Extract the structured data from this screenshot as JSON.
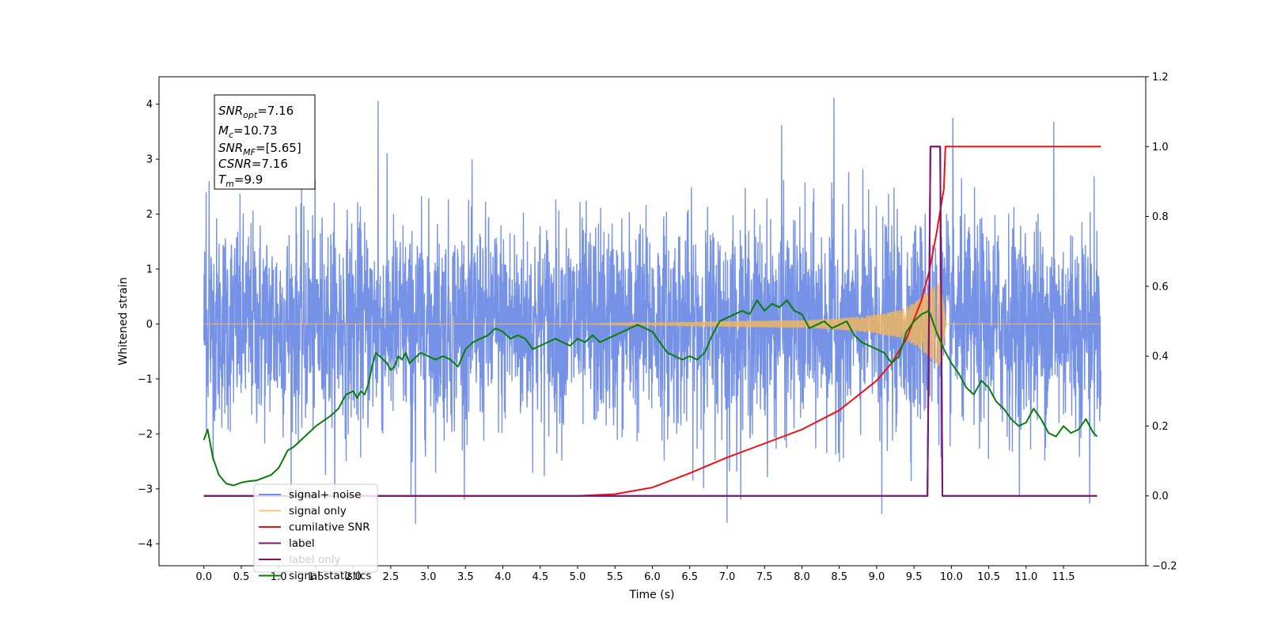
{
  "chart_data": {
    "type": "line",
    "xlabel": "Time (s)",
    "ylabel": "Whitened strain",
    "xlim": [
      -0.6,
      12.6
    ],
    "ylim": [
      -4.4,
      4.5
    ],
    "ylim_right": [
      -0.2,
      1.2
    ],
    "x_ticks": [
      0.0,
      0.5,
      1.0,
      1.5,
      2.0,
      2.5,
      3.0,
      3.5,
      4.0,
      4.5,
      5.0,
      5.5,
      6.0,
      6.5,
      7.0,
      7.5,
      8.0,
      8.5,
      9.0,
      9.5,
      10.0,
      10.5,
      11.0,
      11.5
    ],
    "x_tick_labels": [
      "0.0",
      "0.5",
      "1.0",
      "1.5",
      "2.0",
      "2.5",
      "3.0",
      "3.5",
      "4.0",
      "4.5",
      "5.0",
      "5.5",
      "6.0",
      "6.5",
      "7.0",
      "7.5",
      "8.0",
      "8.5",
      "9.0",
      "9.5",
      "10.0",
      "10.5",
      "11.0",
      "11.5"
    ],
    "y_ticks": [
      -4,
      -3,
      -2,
      -1,
      0,
      1,
      2,
      3,
      4
    ],
    "y_tick_labels": [
      "−4",
      "−3",
      "−2",
      "−1",
      "0",
      "1",
      "2",
      "3",
      "4"
    ],
    "y_right_ticks": [
      -0.2,
      0.0,
      0.2,
      0.4,
      0.6,
      0.8,
      1.0,
      1.2
    ],
    "y_right_tick_labels": [
      "−0.2",
      "0.0",
      "0.2",
      "0.4",
      "0.6",
      "0.8",
      "1.0",
      "1.2"
    ],
    "grid": false,
    "legend_position": "bottom-left",
    "series": [
      {
        "name": "signal+ noise",
        "axis": "left",
        "color": "#6f8ce6",
        "x_range": [
          0.0,
          12.0
        ],
        "std": 0.95,
        "max": 4.12,
        "min": -3.64,
        "spikes": [
          {
            "x": 0.03,
            "y": 2.4
          },
          {
            "x": 0.05,
            "y": -1.0
          },
          {
            "x": 0.07,
            "y": 2.6
          },
          {
            "x": 2.33,
            "y": 4.06
          },
          {
            "x": 2.83,
            "y": -3.64
          },
          {
            "x": 8.43,
            "y": 4.12
          },
          {
            "x": 7.0,
            "y": -3.62
          },
          {
            "x": 9.07,
            "y": -3.46
          },
          {
            "x": 11.85,
            "y": -3.27
          },
          {
            "x": 10.02,
            "y": 3.75
          },
          {
            "x": 11.37,
            "y": 3.68
          },
          {
            "x": 7.73,
            "y": 3.62
          },
          {
            "x": 2.77,
            "y": -3.12
          },
          {
            "x": 12.0,
            "y": 1.15
          },
          {
            "x": 12.0,
            "y": -0.85
          }
        ]
      },
      {
        "name": "signal only",
        "axis": "left",
        "color": "#f5b85a",
        "description_points": [
          {
            "x": 5.0,
            "amp": 0.0
          },
          {
            "x": 6.0,
            "amp": 0.02
          },
          {
            "x": 7.0,
            "amp": 0.05
          },
          {
            "x": 8.0,
            "amp": 0.07
          },
          {
            "x": 8.5,
            "amp": 0.1
          },
          {
            "x": 9.0,
            "amp": 0.17
          },
          {
            "x": 9.3,
            "amp": 0.25
          },
          {
            "x": 9.5,
            "amp": 0.38
          },
          {
            "x": 9.7,
            "amp": 0.6
          },
          {
            "x": 9.85,
            "amp": 0.8
          },
          {
            "x": 9.9,
            "amp": 0.35
          },
          {
            "x": 9.93,
            "amp": 0.0
          }
        ]
      },
      {
        "name": "cumilative SNR",
        "axis": "right",
        "color": "#ee1111",
        "x": [
          0.0,
          4.0,
          5.0,
          5.5,
          6.0,
          6.5,
          7.0,
          7.5,
          8.0,
          8.5,
          9.0,
          9.2,
          9.4,
          9.6,
          9.7,
          9.8,
          9.9,
          9.92,
          12.0
        ],
        "values": [
          0.0,
          0.0,
          0.0,
          0.005,
          0.024,
          0.065,
          0.11,
          0.15,
          0.19,
          0.245,
          0.33,
          0.38,
          0.45,
          0.56,
          0.64,
          0.75,
          0.88,
          1.0,
          1.0
        ]
      },
      {
        "name": "label",
        "axis": "right",
        "color": "#7b1475",
        "x": [
          0.0,
          9.68,
          9.72,
          9.85,
          9.88,
          9.92,
          11.95
        ],
        "values": [
          0.0,
          0.0,
          1.0,
          1.0,
          0.0,
          0.0,
          0.0
        ]
      },
      {
        "name": "label only",
        "axis": "right",
        "color": "#7b1475",
        "x": [
          0.0,
          9.68,
          9.72,
          9.85,
          9.88,
          9.92,
          11.95
        ],
        "values": [
          0.0,
          0.0,
          1.0,
          1.0,
          0.0,
          0.0,
          0.0
        ]
      },
      {
        "name": "signal statistics",
        "axis": "right",
        "color": "#0a7d0a",
        "x": [
          0.0,
          0.05,
          0.12,
          0.2,
          0.3,
          0.4,
          0.5,
          0.6,
          0.7,
          0.8,
          0.9,
          1.0,
          1.05,
          1.12,
          1.2,
          1.3,
          1.4,
          1.5,
          1.6,
          1.7,
          1.8,
          1.9,
          2.0,
          2.05,
          2.1,
          2.15,
          2.2,
          2.25,
          2.3,
          2.35,
          2.4,
          2.45,
          2.5,
          2.55,
          2.6,
          2.65,
          2.7,
          2.75,
          2.8,
          2.85,
          2.9,
          3.0,
          3.1,
          3.2,
          3.3,
          3.4,
          3.5,
          3.6,
          3.7,
          3.8,
          3.9,
          4.0,
          4.1,
          4.2,
          4.3,
          4.4,
          4.5,
          4.6,
          4.7,
          4.8,
          4.9,
          5.0,
          5.1,
          5.2,
          5.3,
          5.4,
          5.5,
          5.6,
          5.7,
          5.8,
          5.9,
          6.0,
          6.1,
          6.2,
          6.3,
          6.4,
          6.5,
          6.6,
          6.7,
          6.8,
          6.9,
          7.0,
          7.1,
          7.2,
          7.3,
          7.4,
          7.5,
          7.6,
          7.7,
          7.8,
          7.9,
          8.0,
          8.1,
          8.2,
          8.3,
          8.4,
          8.5,
          8.6,
          8.7,
          8.8,
          8.9,
          9.0,
          9.1,
          9.2,
          9.3,
          9.4,
          9.5,
          9.6,
          9.7,
          9.8,
          9.9,
          10.0,
          10.1,
          10.2,
          10.3,
          10.4,
          10.5,
          10.6,
          10.7,
          10.8,
          10.9,
          11.0,
          11.1,
          11.2,
          11.3,
          11.4,
          11.5,
          11.6,
          11.7,
          11.8,
          11.9,
          11.95
        ],
        "values": [
          0.16,
          0.19,
          0.11,
          0.06,
          0.035,
          0.03,
          0.038,
          0.042,
          0.044,
          0.052,
          0.06,
          0.08,
          0.1,
          0.13,
          0.14,
          0.16,
          0.18,
          0.2,
          0.215,
          0.23,
          0.25,
          0.29,
          0.3,
          0.28,
          0.3,
          0.29,
          0.32,
          0.37,
          0.41,
          0.4,
          0.39,
          0.38,
          0.36,
          0.37,
          0.4,
          0.39,
          0.41,
          0.38,
          0.39,
          0.4,
          0.41,
          0.4,
          0.39,
          0.4,
          0.39,
          0.37,
          0.42,
          0.44,
          0.45,
          0.46,
          0.48,
          0.47,
          0.45,
          0.46,
          0.45,
          0.42,
          0.43,
          0.44,
          0.45,
          0.44,
          0.43,
          0.45,
          0.44,
          0.46,
          0.44,
          0.45,
          0.46,
          0.47,
          0.48,
          0.49,
          0.48,
          0.47,
          0.44,
          0.41,
          0.4,
          0.39,
          0.4,
          0.39,
          0.41,
          0.46,
          0.5,
          0.51,
          0.52,
          0.53,
          0.52,
          0.56,
          0.53,
          0.55,
          0.54,
          0.56,
          0.53,
          0.52,
          0.48,
          0.49,
          0.5,
          0.48,
          0.49,
          0.5,
          0.46,
          0.44,
          0.43,
          0.42,
          0.41,
          0.38,
          0.4,
          0.47,
          0.5,
          0.52,
          0.53,
          0.47,
          0.42,
          0.38,
          0.35,
          0.31,
          0.29,
          0.33,
          0.31,
          0.27,
          0.25,
          0.22,
          0.2,
          0.21,
          0.25,
          0.22,
          0.18,
          0.17,
          0.2,
          0.18,
          0.19,
          0.22,
          0.18,
          0.17
        ]
      }
    ],
    "info_box": [
      {
        "base": "SNR",
        "sub": "opt",
        "value": "=7.16"
      },
      {
        "base": "M",
        "sub": "c",
        "value": "=10.73"
      },
      {
        "base": "SNR",
        "sub": "MF",
        "value": "=[5.65]"
      },
      {
        "base": "CSNR",
        "sub": "",
        "value": "=7.16"
      },
      {
        "base": "T",
        "sub": "m",
        "value": "=9.9"
      }
    ]
  }
}
